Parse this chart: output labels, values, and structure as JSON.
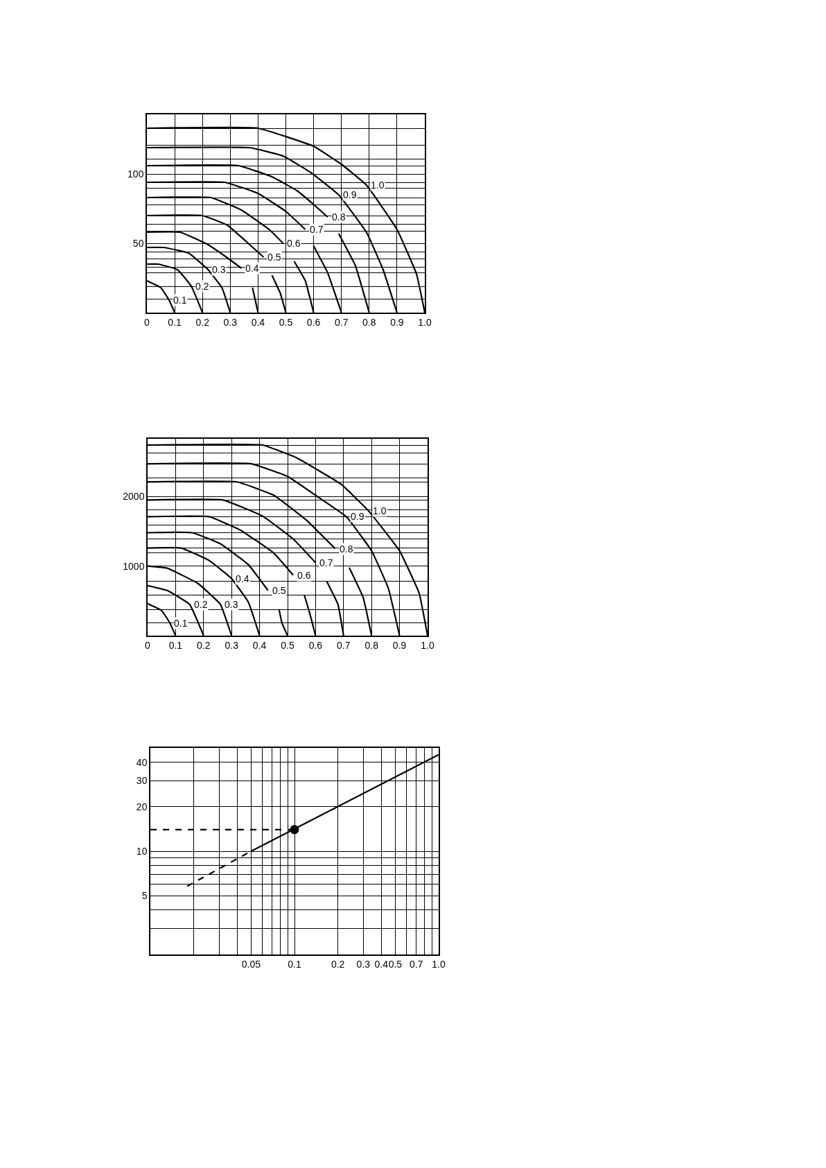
{
  "chart_data": [
    {
      "type": "line",
      "legend": false,
      "grid": true,
      "marker": "none",
      "line_style": "solid",
      "xlim": [
        0,
        1
      ],
      "xticks": [
        0,
        0.1,
        0.2,
        0.3,
        0.4,
        0.5,
        0.6,
        0.7,
        0.8,
        0.9,
        {
          "value": 1,
          "label": "1.0"
        }
      ],
      "ylim": [
        0,
        143
      ],
      "yticks": [
        {
          "value": 10,
          "label": null
        },
        {
          "value": 19,
          "label": null
        },
        {
          "value": 29,
          "label": null
        },
        {
          "value": 33,
          "label": null
        },
        {
          "value": 39,
          "label": null
        },
        {
          "value": 44,
          "label": null
        },
        50,
        {
          "value": 59,
          "label": null
        },
        {
          "value": 64,
          "label": null
        },
        {
          "value": 70,
          "label": null
        },
        {
          "value": 78,
          "label": null
        },
        {
          "value": 83,
          "label": null
        },
        {
          "value": 90,
          "label": null
        },
        {
          "value": 94,
          "label": null
        },
        100,
        {
          "value": 106,
          "label": null
        },
        {
          "value": 111,
          "label": null
        },
        {
          "value": 121,
          "label": null
        },
        {
          "value": 133,
          "label": null
        }
      ],
      "series": [
        {
          "name": "0.1",
          "color": "#000000",
          "x": [
            0,
            0.05,
            0.08,
            0.1
          ],
          "values": [
            23,
            18,
            9,
            0
          ]
        },
        {
          "name": "0.2",
          "color": "#000000",
          "x": [
            0,
            0.04,
            0.11,
            0.16,
            0.2
          ],
          "values": [
            35,
            35,
            31,
            19,
            0
          ]
        },
        {
          "name": "0.3",
          "color": "#000000",
          "x": [
            0,
            0.06,
            0.15,
            0.22,
            0.27,
            0.3
          ],
          "values": [
            47,
            47,
            43,
            31,
            18,
            0
          ]
        },
        {
          "name": "0.4",
          "color": "#000000",
          "x": [
            0,
            0.12,
            0.22,
            0.3,
            0.34,
            0.36,
            0.38,
            0.39,
            0.4
          ],
          "values": [
            58,
            58,
            49,
            38,
            32,
            null,
            18,
            9,
            0
          ]
        },
        {
          "name": "0.5",
          "color": "#000000",
          "x": [
            0,
            0.2,
            0.29,
            0.37,
            0.42,
            0.43,
            0.45,
            0.48,
            0.5
          ],
          "values": [
            70,
            70,
            63,
            49,
            40,
            null,
            27,
            14,
            0
          ]
        },
        {
          "name": "0.6",
          "color": "#000000",
          "x": [
            0,
            0.23,
            0.34,
            0.44,
            0.49,
            0.51,
            0.53,
            0.57,
            0.6
          ],
          "values": [
            83,
            83,
            74,
            60,
            50,
            null,
            37,
            23,
            0
          ]
        },
        {
          "name": "0.7",
          "color": "#000000",
          "x": [
            0,
            0.28,
            0.4,
            0.5,
            0.57,
            0.58,
            0.6,
            0.65,
            0.7
          ],
          "values": [
            94,
            94,
            86,
            73,
            60,
            null,
            48,
            29,
            0
          ]
        },
        {
          "name": "0.8",
          "color": "#000000",
          "x": [
            0,
            0.33,
            0.45,
            0.54,
            0.6,
            0.65,
            0.67,
            0.69,
            0.75,
            0.8
          ],
          "values": [
            106,
            106,
            98,
            88,
            78,
            69,
            null,
            57,
            34,
            0
          ]
        },
        {
          "name": "0.9",
          "color": "#000000",
          "x": [
            0,
            0.37,
            0.49,
            0.59,
            0.69,
            0.79,
            0.85,
            0.9
          ],
          "values": [
            119,
            119,
            113,
            101,
            85,
            58,
            31,
            0
          ]
        },
        {
          "name": "1.0",
          "color": "#000000",
          "x": [
            0,
            0.4,
            0.6,
            0.7,
            0.79,
            0.9,
            0.97,
            1.0
          ],
          "values": [
            133,
            133,
            120,
            107,
            92,
            60,
            28,
            0
          ]
        }
      ]
    },
    {
      "type": "line",
      "legend": false,
      "grid": true,
      "marker": "none",
      "line_style": "solid",
      "xlim": [
        0,
        1
      ],
      "xticks": [
        0,
        0.1,
        0.2,
        0.3,
        0.4,
        0.5,
        0.6,
        0.7,
        0.8,
        0.9,
        {
          "value": 1,
          "label": "1.0"
        }
      ],
      "ylim": [
        0,
        2830
      ],
      "yticks": [
        {
          "value": 180,
          "label": null
        },
        {
          "value": 370,
          "label": null
        },
        {
          "value": 580,
          "label": null
        },
        {
          "value": 780,
          "label": null
        },
        1000,
        {
          "value": 1190,
          "label": null
        },
        {
          "value": 1260,
          "label": null
        },
        {
          "value": 1390,
          "label": null
        },
        {
          "value": 1480,
          "label": null
        },
        {
          "value": 1590,
          "label": null
        },
        {
          "value": 1710,
          "label": null
        },
        {
          "value": 1810,
          "label": null
        },
        {
          "value": 1950,
          "label": null
        },
        2000,
        {
          "value": 2210,
          "label": null
        },
        {
          "value": 2270,
          "label": null
        },
        {
          "value": 2470,
          "label": null
        },
        {
          "value": 2630,
          "label": null
        },
        {
          "value": 2740,
          "label": null
        }
      ],
      "series": [
        {
          "name": "0.1",
          "color": "#000000",
          "x": [
            0,
            0.05,
            0.08,
            0.1
          ],
          "values": [
            460,
            360,
            180,
            0
          ]
        },
        {
          "name": "0.2",
          "color": "#000000",
          "x": [
            0,
            0.07,
            0.15,
            0.2
          ],
          "values": [
            720,
            650,
            450,
            0
          ]
        },
        {
          "name": "0.3",
          "color": "#000000",
          "x": [
            0,
            0.07,
            0.18,
            0.26,
            0.3
          ],
          "values": [
            1000,
            970,
            750,
            450,
            0
          ]
        },
        {
          "name": "0.4",
          "color": "#000000",
          "x": [
            0,
            0.12,
            0.22,
            0.3,
            0.36,
            0.4
          ],
          "values": [
            1260,
            1260,
            1080,
            820,
            480,
            0
          ]
        },
        {
          "name": "0.5",
          "color": "#000000",
          "x": [
            0,
            0.16,
            0.26,
            0.36,
            0.43,
            0.45,
            0.47,
            0.48,
            0.5
          ],
          "values": [
            1480,
            1480,
            1320,
            1020,
            650,
            null,
            370,
            180,
            0
          ]
        },
        {
          "name": "0.6",
          "color": "#000000",
          "x": [
            0,
            0.22,
            0.33,
            0.45,
            0.52,
            0.54,
            0.56,
            0.58,
            0.6
          ],
          "values": [
            1710,
            1710,
            1520,
            1190,
            870,
            null,
            580,
            310,
            0
          ]
        },
        {
          "name": "0.7",
          "color": "#000000",
          "x": [
            0,
            0.27,
            0.41,
            0.52,
            0.6,
            0.62,
            0.64,
            0.68,
            0.7
          ],
          "values": [
            1950,
            1950,
            1720,
            1390,
            1050,
            null,
            780,
            450,
            0
          ]
        },
        {
          "name": "0.8",
          "color": "#000000",
          "x": [
            0,
            0.32,
            0.45,
            0.57,
            0.67,
            0.69,
            0.72,
            0.77,
            0.8
          ],
          "values": [
            2210,
            2210,
            2020,
            1650,
            1250,
            null,
            980,
            550,
            0
          ]
        },
        {
          "name": "0.9",
          "color": "#000000",
          "x": [
            0,
            0.37,
            0.5,
            0.61,
            0.71,
            0.8,
            0.86,
            0.9
          ],
          "values": [
            2470,
            2470,
            2290,
            1990,
            1710,
            1220,
            680,
            0
          ]
        },
        {
          "name": "1.0",
          "color": "#000000",
          "x": [
            0,
            0.41,
            0.53,
            0.69,
            0.79,
            0.9,
            0.97,
            1.0
          ],
          "values": [
            2740,
            2740,
            2560,
            2180,
            1790,
            1220,
            610,
            0
          ]
        }
      ]
    },
    {
      "type": "line",
      "log": "xy",
      "legend": false,
      "grid": true,
      "marker": "none",
      "line_style": "solid",
      "xlim": [
        0.01,
        1
      ],
      "xticks": [
        {
          "value": 0.02,
          "label": null
        },
        {
          "value": 0.03,
          "label": null
        },
        {
          "value": 0.04,
          "label": null
        },
        0.05,
        {
          "value": 0.06,
          "label": null
        },
        {
          "value": 0.07,
          "label": null
        },
        {
          "value": 0.08,
          "label": null
        },
        {
          "value": 0.09,
          "label": null
        },
        0.1,
        0.2,
        0.3,
        0.4,
        0.5,
        {
          "value": 0.6,
          "label": null
        },
        0.7,
        {
          "value": 0.8,
          "label": null
        },
        {
          "value": 0.9,
          "label": null
        },
        {
          "value": 1,
          "label": "1.0"
        }
      ],
      "ylim": [
        2,
        50
      ],
      "yticks": [
        {
          "value": 3,
          "label": null
        },
        {
          "value": 4,
          "label": null
        },
        5,
        {
          "value": 6,
          "label": null
        },
        {
          "value": 7,
          "label": null
        },
        {
          "value": 8,
          "label": null
        },
        {
          "value": 9,
          "label": null
        },
        10,
        20,
        30,
        40
      ],
      "series": [
        {
          "color": "#000000",
          "x": [
            0.05,
            1
          ],
          "values": [
            10,
            45
          ]
        },
        {
          "color": "#000000",
          "x": [
            0.018,
            0.05
          ],
          "values": [
            5.8,
            10
          ],
          "line_style": "dashed"
        },
        {
          "color": "#000000",
          "x": [
            0.01,
            0.1
          ],
          "values": [
            14,
            14
          ],
          "line_style": "dashed"
        },
        {
          "color": "#000000",
          "type": "scatter",
          "marker": "circle",
          "x": [
            0.1
          ],
          "values": [
            14
          ]
        }
      ]
    }
  ]
}
